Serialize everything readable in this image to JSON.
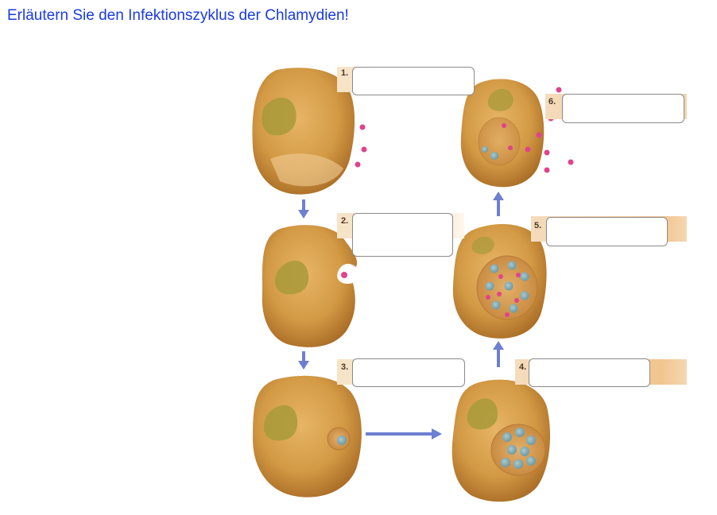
{
  "question": "Erläutern Sie den Infektionszyklus der Chlamydien!",
  "steps": [
    {
      "number": "1.",
      "answer": ""
    },
    {
      "number": "2.",
      "answer": ""
    },
    {
      "number": "3.",
      "answer": ""
    },
    {
      "number": "4.",
      "answer": ""
    },
    {
      "number": "5.",
      "answer": ""
    },
    {
      "number": "6.",
      "answer": ""
    }
  ],
  "colors": {
    "title": "#1a3be0",
    "cell": "#d39a45",
    "nucleus": "#a89a3a",
    "arrow": "#6d7fd0",
    "elementary_body": "#e0448a",
    "reticulate_body": "#8fb1b8"
  }
}
